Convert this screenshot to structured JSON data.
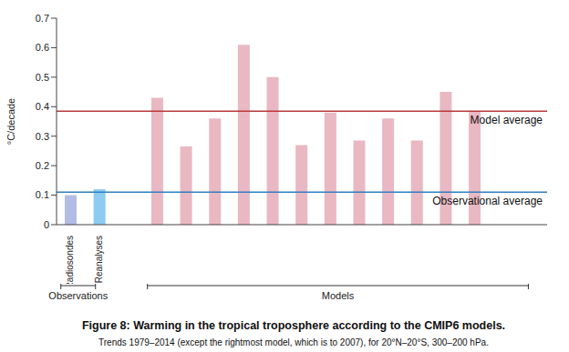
{
  "chart_data": {
    "type": "bar",
    "title": "Figure 8: Warming in the tropical troposphere according to the CMIP6 models.",
    "subtitle": "Trends 1979–2014 (except the rightmost model, which is to 2007), for 20°N–20°S, 300–200 hPa.",
    "y_label": "°C/decade",
    "categories": [
      "Radiosondes",
      "Reanalyses",
      null,
      null,
      null,
      null,
      null,
      null,
      null,
      null,
      null,
      null,
      null,
      null,
      null,
      null,
      null
    ],
    "values": [
      0.1,
      0.12,
      null,
      0.43,
      0.265,
      0.36,
      0.61,
      0.5,
      0.27,
      0.38,
      0.285,
      0.36,
      0.285,
      0.45,
      0.385,
      null,
      null
    ],
    "colors": [
      "#b3bde3",
      "#8ecbf0",
      null,
      "#e9b8c2",
      "#e9b8c2",
      "#e9b8c2",
      "#e9b8c2",
      "#e9b8c2",
      "#e9b8c2",
      "#e9b8c2",
      "#e9b8c2",
      "#e9b8c2",
      "#e9b8c2",
      "#e9b8c2",
      "#e9b8c2",
      null,
      null
    ],
    "ylim": [
      0,
      0.7
    ],
    "yticks": [
      0,
      0.1,
      0.2,
      0.3,
      0.4,
      0.5,
      0.6,
      0.7
    ],
    "grid": false,
    "reference_lines": [
      {
        "label": "Model average",
        "value": 0.385,
        "color": "#b8393a"
      },
      {
        "label": "Observational average",
        "value": 0.11,
        "color": "#2f7fc1"
      }
    ],
    "groups": [
      {
        "label": "Observations",
        "start": 0,
        "end": 1
      },
      {
        "label": "Models",
        "start": 3,
        "end": 16
      }
    ]
  }
}
